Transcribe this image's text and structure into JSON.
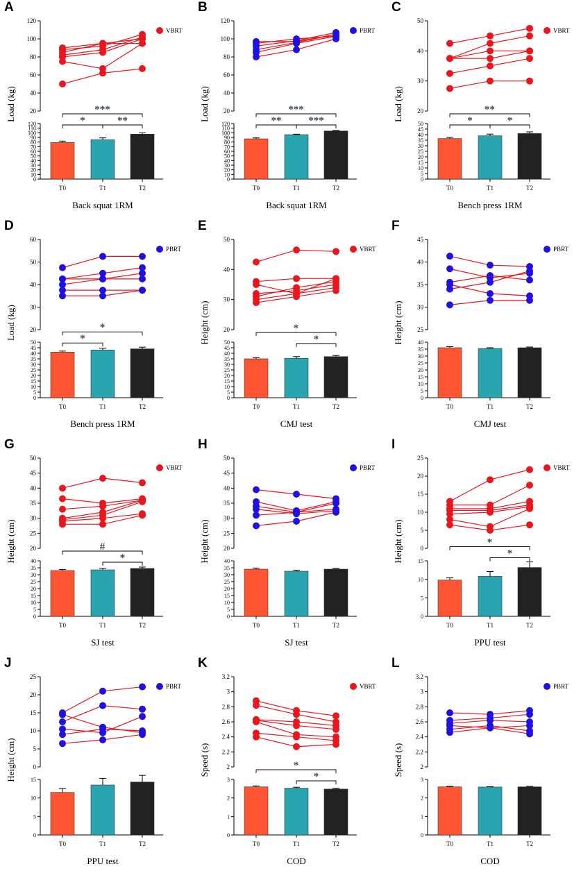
{
  "figure": {
    "colors": {
      "vbrt": "#e8171d",
      "pbrt": "#1f12e0",
      "line_vbrt": "#e8171d",
      "line_pbrt": "#e8171d",
      "bar_t0": "#ff5533",
      "bar_t1": "#2aa5b0",
      "bar_t2": "#222222",
      "sig": "#3b4a56"
    }
  },
  "chart_data": [
    {
      "panel": "A",
      "type": "scatter",
      "group": "VBRT",
      "legend": "VBRT",
      "ylabel": "Load (kg)",
      "xlabel": "Back squat 1RM",
      "x_ticks": [
        "T0",
        "T1",
        "T2"
      ],
      "top_ylim": [
        20,
        120
      ],
      "top_ticks": [
        20,
        40,
        60,
        80,
        100,
        120
      ],
      "bottom_ylim": [
        0,
        120
      ],
      "bottom_ticks": [
        0,
        10,
        20,
        30,
        40,
        50,
        60,
        70,
        80,
        90,
        100,
        110,
        120
      ],
      "series": [
        [
          50,
          62,
          67
        ],
        [
          75,
          67,
          95
        ],
        [
          80,
          85,
          100
        ],
        [
          85,
          95,
          95
        ],
        [
          88,
          92,
          105
        ],
        [
          90,
          95,
          100
        ],
        [
          82,
          88,
          102
        ]
      ],
      "bars": [
        {
          "label": "T0",
          "mean": 79,
          "err": 3
        },
        {
          "label": "T1",
          "mean": 85,
          "err": 4
        },
        {
          "label": "T2",
          "mean": 97,
          "err": 3
        }
      ],
      "sig": [
        {
          "from": 0,
          "to": 1,
          "label": "*"
        },
        {
          "from": 1,
          "to": 2,
          "label": "**"
        },
        {
          "from": 0,
          "to": 2,
          "label": "***"
        }
      ]
    },
    {
      "panel": "B",
      "type": "scatter",
      "group": "PBRT",
      "legend": "PBRT",
      "ylabel": "Load (kg)",
      "xlabel": "Back squat 1RM",
      "x_ticks": [
        "T0",
        "T1",
        "T2"
      ],
      "top_ylim": [
        20,
        120
      ],
      "top_ticks": [
        20,
        40,
        60,
        80,
        100,
        120
      ],
      "bottom_ylim": [
        0,
        120
      ],
      "bottom_ticks": [
        0,
        10,
        20,
        30,
        40,
        50,
        60,
        70,
        80,
        90,
        100,
        110,
        120
      ],
      "series": [
        [
          80,
          88,
          100
        ],
        [
          85,
          95,
          103
        ],
        [
          88,
          96,
          105
        ],
        [
          92,
          98,
          107
        ],
        [
          95,
          100,
          103
        ],
        [
          97,
          97,
          105
        ]
      ],
      "bars": [
        {
          "label": "T0",
          "mean": 87,
          "err": 2
        },
        {
          "label": "T1",
          "mean": 96,
          "err": 1
        },
        {
          "label": "T2",
          "mean": 104,
          "err": 1
        }
      ],
      "sig": [
        {
          "from": 0,
          "to": 1,
          "label": "**"
        },
        {
          "from": 1,
          "to": 2,
          "label": "***"
        },
        {
          "from": 0,
          "to": 2,
          "label": "***"
        }
      ]
    },
    {
      "panel": "C",
      "type": "scatter",
      "group": "VBRT",
      "legend": "VBRT",
      "ylabel": "Load (kg)",
      "xlabel": "Bench press 1RM",
      "x_ticks": [
        "T0",
        "T1",
        "T2"
      ],
      "top_ylim": [
        20,
        50
      ],
      "top_ticks": [
        20,
        30,
        40,
        50
      ],
      "bottom_ylim": [
        0,
        50
      ],
      "bottom_ticks": [
        0,
        5,
        10,
        15,
        20,
        25,
        30,
        35,
        40,
        45,
        50
      ],
      "series": [
        [
          27.5,
          30,
          30
        ],
        [
          32.5,
          35,
          37.5
        ],
        [
          37.5,
          37.5,
          40
        ],
        [
          37.5,
          40,
          40
        ],
        [
          37.5,
          42.5,
          45
        ],
        [
          42.5,
          45,
          47.5
        ]
      ],
      "bars": [
        {
          "label": "T0",
          "mean": 36.5,
          "err": 1
        },
        {
          "label": "T1",
          "mean": 39,
          "err": 1.5
        },
        {
          "label": "T2",
          "mean": 41,
          "err": 1.5
        }
      ],
      "sig": [
        {
          "from": 0,
          "to": 1,
          "label": "*"
        },
        {
          "from": 1,
          "to": 2,
          "label": "*"
        },
        {
          "from": 0,
          "to": 2,
          "label": "**"
        }
      ]
    },
    {
      "panel": "D",
      "type": "scatter",
      "group": "PBRT",
      "legend": "PBRT",
      "ylabel": "Load (kg)",
      "xlabel": "Bench press 1RM",
      "x_ticks": [
        "T0",
        "T1",
        "T2"
      ],
      "top_ylim": [
        20,
        60
      ],
      "top_ticks": [
        20,
        30,
        40,
        50,
        60
      ],
      "bottom_ylim": [
        0,
        50
      ],
      "bottom_ticks": [
        0,
        5,
        10,
        15,
        20,
        25,
        30,
        35,
        40,
        45,
        50
      ],
      "series": [
        [
          35,
          35,
          37.5
        ],
        [
          37.5,
          37.5,
          37.5
        ],
        [
          40,
          42.5,
          45
        ],
        [
          42.5,
          45,
          47.5
        ],
        [
          42.5,
          42.5,
          42.5
        ],
        [
          47.5,
          52.5,
          52.5
        ]
      ],
      "bars": [
        {
          "label": "T0",
          "mean": 41,
          "err": 1
        },
        {
          "label": "T1",
          "mean": 43,
          "err": 1.5
        },
        {
          "label": "T2",
          "mean": 44,
          "err": 1.5
        }
      ],
      "sig": [
        {
          "from": 0,
          "to": 1,
          "label": "*"
        },
        {
          "from": 0,
          "to": 2,
          "label": "*"
        }
      ]
    },
    {
      "panel": "E",
      "type": "scatter",
      "group": "VBRT",
      "legend": "VBRT",
      "ylabel": "Height (cm)",
      "xlabel": "CMJ test",
      "x_ticks": [
        "T0",
        "T1",
        "T2"
      ],
      "top_ylim": [
        20,
        50
      ],
      "top_ticks": [
        20,
        30,
        40,
        50
      ],
      "bottom_ylim": [
        0,
        50
      ],
      "bottom_ticks": [
        0,
        5,
        10,
        15,
        20,
        25,
        30,
        35,
        40,
        45,
        50
      ],
      "series": [
        [
          29,
          31,
          33
        ],
        [
          30,
          32,
          34
        ],
        [
          31,
          34,
          36
        ],
        [
          32,
          33,
          35
        ],
        [
          35,
          32,
          37
        ],
        [
          36,
          37,
          37
        ],
        [
          42.5,
          46.5,
          46
        ]
      ],
      "bars": [
        {
          "label": "T0",
          "mean": 35,
          "err": 1
        },
        {
          "label": "T1",
          "mean": 35.5,
          "err": 1.5
        },
        {
          "label": "T2",
          "mean": 37,
          "err": 1
        }
      ],
      "sig": [
        {
          "from": 1,
          "to": 2,
          "label": "*"
        },
        {
          "from": 0,
          "to": 2,
          "label": "*"
        }
      ]
    },
    {
      "panel": "F",
      "type": "scatter",
      "group": "PBRT",
      "legend": "PBRT",
      "ylabel": "Height (cm)",
      "xlabel": "CMJ test",
      "x_ticks": [
        "T0",
        "T1",
        "T2"
      ],
      "top_ylim": [
        25,
        45
      ],
      "top_ticks": [
        25,
        30,
        35,
        40,
        45
      ],
      "bottom_ylim": [
        0,
        40
      ],
      "bottom_ticks": [
        0,
        5,
        10,
        15,
        20,
        25,
        30,
        35,
        40
      ],
      "series": [
        [
          30.5,
          31.5,
          31.5
        ],
        [
          34,
          35.5,
          38
        ],
        [
          35,
          33,
          32.5
        ],
        [
          35.5,
          37,
          36
        ],
        [
          38.5,
          36.5,
          37.5
        ],
        [
          41.3,
          39.3,
          39
        ]
      ],
      "bars": [
        {
          "label": "T0",
          "mean": 36,
          "err": 0.8
        },
        {
          "label": "T1",
          "mean": 35.5,
          "err": 0.5
        },
        {
          "label": "T2",
          "mean": 36,
          "err": 0.5
        }
      ],
      "sig": []
    },
    {
      "panel": "G",
      "type": "scatter",
      "group": "VBRT",
      "legend": "VBRT",
      "ylabel": "Height (cm)",
      "xlabel": "SJ test",
      "x_ticks": [
        "T0",
        "T1",
        "T2"
      ],
      "top_ylim": [
        20,
        50
      ],
      "top_ticks": [
        20,
        25,
        30,
        35,
        40,
        45,
        50
      ],
      "bottom_ylim": [
        0,
        40
      ],
      "bottom_ticks": [
        0,
        5,
        10,
        15,
        20,
        25,
        30,
        35,
        40
      ],
      "series": [
        [
          28,
          28,
          31
        ],
        [
          29,
          30,
          31.5
        ],
        [
          29.5,
          31,
          35.5
        ],
        [
          30,
          32,
          36
        ],
        [
          33,
          34,
          36
        ],
        [
          36.5,
          35,
          36.5
        ],
        [
          40,
          43.3,
          41.8
        ]
      ],
      "bars": [
        {
          "label": "T0",
          "mean": 33,
          "err": 0.8
        },
        {
          "label": "T1",
          "mean": 33.5,
          "err": 1
        },
        {
          "label": "T2",
          "mean": 34.5,
          "err": 1
        }
      ],
      "sig": [
        {
          "from": 1,
          "to": 2,
          "label": "*"
        },
        {
          "from": 0,
          "to": 2,
          "label": "#"
        }
      ]
    },
    {
      "panel": "H",
      "type": "scatter",
      "group": "PBRT",
      "legend": "PBRT",
      "ylabel": "Height (cm)",
      "xlabel": "SJ test",
      "x_ticks": [
        "T0",
        "T1",
        "T2"
      ],
      "top_ylim": [
        20,
        50
      ],
      "top_ticks": [
        20,
        25,
        30,
        35,
        40,
        45,
        50
      ],
      "bottom_ylim": [
        0,
        40
      ],
      "bottom_ticks": [
        0,
        5,
        10,
        15,
        20,
        25,
        30,
        35,
        40
      ],
      "series": [
        [
          27.5,
          29,
          32
        ],
        [
          31,
          32,
          33
        ],
        [
          33,
          31.5,
          32.5
        ],
        [
          34,
          32,
          35
        ],
        [
          35.5,
          32.5,
          35.5
        ],
        [
          39.5,
          38,
          36.5
        ]
      ],
      "bars": [
        {
          "label": "T0",
          "mean": 34,
          "err": 0.8
        },
        {
          "label": "T1",
          "mean": 32.5,
          "err": 0.8
        },
        {
          "label": "T2",
          "mean": 34,
          "err": 0.5
        }
      ],
      "sig": []
    },
    {
      "panel": "I",
      "type": "scatter",
      "group": "VBRT",
      "legend": "VBRT",
      "ylabel": "Height (cm)",
      "xlabel": "PPU test",
      "x_ticks": [
        "T0",
        "T1",
        "T2"
      ],
      "top_ylim": [
        0,
        25
      ],
      "top_ticks": [
        0,
        5,
        10,
        15,
        20,
        25
      ],
      "bottom_ylim": [
        0,
        15
      ],
      "bottom_ticks": [
        0,
        5,
        10,
        15
      ],
      "series": [
        [
          6.5,
          5,
          6.5
        ],
        [
          8,
          6,
          11
        ],
        [
          9.5,
          10,
          11.5
        ],
        [
          10.5,
          10.5,
          12
        ],
        [
          11,
          11,
          13
        ],
        [
          12,
          12,
          17.5
        ],
        [
          13,
          19,
          21.8
        ]
      ],
      "bars": [
        {
          "label": "T0",
          "mean": 9.8,
          "err": 0.6
        },
        {
          "label": "T1",
          "mean": 10.8,
          "err": 1.3
        },
        {
          "label": "T2",
          "mean": 13.2,
          "err": 1.5
        }
      ],
      "sig": [
        {
          "from": 1,
          "to": 2,
          "label": "*"
        },
        {
          "from": 0,
          "to": 2,
          "label": "*"
        }
      ]
    },
    {
      "panel": "J",
      "type": "scatter",
      "group": "PBRT",
      "legend": "PBRT",
      "ylabel": "Height (cm)",
      "xlabel": "PPU test",
      "x_ticks": [
        "T0",
        "T1",
        "T2"
      ],
      "top_ylim": [
        0,
        25
      ],
      "top_ticks": [
        0,
        5,
        10,
        15,
        20,
        25
      ],
      "bottom_ylim": [
        0,
        15
      ],
      "bottom_ticks": [
        0,
        5,
        10,
        15
      ],
      "series": [
        [
          6.5,
          7.5,
          9
        ],
        [
          9,
          10.5,
          10
        ],
        [
          10.5,
          9.5,
          14
        ],
        [
          12.5,
          17,
          16
        ],
        [
          14.5,
          11,
          9.5
        ],
        [
          15,
          21,
          22.2
        ]
      ],
      "bars": [
        {
          "label": "T0",
          "mean": 11.5,
          "err": 1
        },
        {
          "label": "T1",
          "mean": 13.5,
          "err": 1.8
        },
        {
          "label": "T2",
          "mean": 14.3,
          "err": 1.8
        }
      ],
      "sig": []
    },
    {
      "panel": "K",
      "type": "scatter",
      "group": "VBRT",
      "legend": "VBRT",
      "ylabel": "Speed (s)",
      "xlabel": "COD",
      "x_ticks": [
        "T0",
        "T1",
        "T2"
      ],
      "top_ylim": [
        2.0,
        3.2
      ],
      "top_ticks": [
        2.0,
        2.2,
        2.4,
        2.6,
        2.8,
        3.0,
        3.2
      ],
      "bottom_ylim": [
        0,
        3
      ],
      "bottom_ticks": [
        0,
        1,
        2,
        3
      ],
      "series": [
        [
          2.4,
          2.27,
          2.3
        ],
        [
          2.45,
          2.4,
          2.35
        ],
        [
          2.6,
          2.43,
          2.4
        ],
        [
          2.62,
          2.55,
          2.5
        ],
        [
          2.63,
          2.6,
          2.55
        ],
        [
          2.82,
          2.7,
          2.6
        ],
        [
          2.88,
          2.75,
          2.68
        ]
      ],
      "bars": [
        {
          "label": "T0",
          "mean": 2.6,
          "err": 0.05
        },
        {
          "label": "T1",
          "mean": 2.53,
          "err": 0.05
        },
        {
          "label": "T2",
          "mean": 2.48,
          "err": 0.04
        }
      ],
      "sig": [
        {
          "from": 1,
          "to": 2,
          "label": "*"
        },
        {
          "from": 0,
          "to": 2,
          "label": "*"
        }
      ]
    },
    {
      "panel": "L",
      "type": "scatter",
      "group": "PBRT",
      "legend": "PBRT",
      "ylabel": "Speed (s)",
      "xlabel": "COD",
      "x_ticks": [
        "T0",
        "T1",
        "T2"
      ],
      "top_ylim": [
        2.0,
        3.2
      ],
      "top_ticks": [
        2.0,
        2.2,
        2.4,
        2.6,
        2.8,
        3.0,
        3.2
      ],
      "bottom_ylim": [
        0,
        3
      ],
      "bottom_ticks": [
        0,
        1,
        2,
        3
      ],
      "series": [
        [
          2.46,
          2.52,
          2.44
        ],
        [
          2.5,
          2.55,
          2.48
        ],
        [
          2.55,
          2.52,
          2.55
        ],
        [
          2.58,
          2.62,
          2.6
        ],
        [
          2.62,
          2.65,
          2.7
        ],
        [
          2.72,
          2.7,
          2.75
        ]
      ],
      "bars": [
        {
          "label": "T0",
          "mean": 2.6,
          "err": 0.03
        },
        {
          "label": "T1",
          "mean": 2.59,
          "err": 0.02
        },
        {
          "label": "T2",
          "mean": 2.6,
          "err": 0.03
        }
      ],
      "sig": []
    }
  ]
}
